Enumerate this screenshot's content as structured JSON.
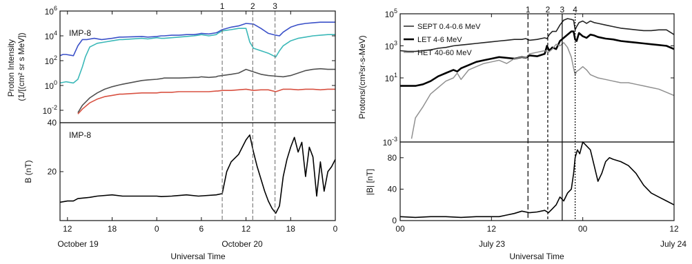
{
  "chart_data": [
    {
      "type": "line",
      "panel": "left",
      "top": {
        "label": "IMP-8",
        "ylabel_line1": "Proton Intensity",
        "ylabel_line2": "(1/[(cm² sr s MeV])",
        "yscale": "log",
        "ylim_exp": [
          -3,
          6
        ],
        "ytick_exps": [
          -2,
          0,
          2,
          4,
          6
        ],
        "series": [
          {
            "name": "",
            "color": "#3a50c8",
            "x": [
              -13,
              -12.6,
              -12.2,
              -11.2,
              -10.6,
              -10,
              -9.4,
              -8.4,
              -7.4,
              -6,
              -5,
              -4.6,
              -2,
              -1.2,
              0,
              0.6,
              1,
              2,
              3,
              4,
              5,
              5.6,
              6,
              7,
              8,
              8.2,
              8.8,
              10,
              11,
              12,
              13,
              14,
              15,
              16,
              16.5,
              17,
              18,
              19,
              20,
              21,
              22,
              23,
              24
            ],
            "y": [
              2.4,
              2.5,
              2.5,
              2.4,
              3.2,
              3.7,
              3.7,
              3.8,
              3.7,
              3.8,
              3.9,
              3.9,
              3.95,
              3.9,
              3.95,
              4.0,
              4.0,
              4.05,
              4.05,
              4.1,
              4.1,
              4.15,
              4.2,
              4.15,
              4.25,
              4.3,
              4.5,
              4.7,
              4.8,
              5.0,
              4.95,
              4.6,
              4.2,
              4.05,
              4.0,
              4.3,
              4.7,
              4.9,
              5.0,
              5.05,
              5.1,
              5.1,
              5.1
            ]
          },
          {
            "name": "",
            "color": "#3ab8b8",
            "x": [
              -13,
              -12.2,
              -11.2,
              -10.6,
              -10,
              -9.6,
              -9,
              -8,
              -7,
              -6,
              -5,
              -4.6,
              -2,
              -1.2,
              0,
              0.6,
              1,
              2,
              3,
              4,
              5,
              5.6,
              6,
              7,
              8,
              8.2,
              8.8,
              10,
              11,
              12,
              12.5,
              13,
              14,
              15,
              16,
              16.5,
              17,
              18,
              19,
              20,
              21,
              22,
              23,
              24
            ],
            "y": [
              0.2,
              0.3,
              0.2,
              0.5,
              1.5,
              2.3,
              3.1,
              3.4,
              3.5,
              3.6,
              3.7,
              3.7,
              3.8,
              3.75,
              3.85,
              3.8,
              3.8,
              3.85,
              3.9,
              3.95,
              4.0,
              4.05,
              4.1,
              4.0,
              4.1,
              4.2,
              4.4,
              4.5,
              4.6,
              4.6,
              3.5,
              3.0,
              2.8,
              2.6,
              2.3,
              2.8,
              3.2,
              3.6,
              3.8,
              3.9,
              4.0,
              4.05,
              4.1,
              4.1
            ]
          },
          {
            "name": "",
            "color": "#505050",
            "x": [
              -10.6,
              -10,
              -9,
              -8,
              -7,
              -6,
              -5,
              -4.6,
              -2,
              -1.2,
              0,
              0.6,
              1,
              2,
              3,
              4,
              5,
              5.6,
              6,
              7,
              8,
              8.2,
              8.8,
              10,
              11,
              12,
              13,
              14,
              15,
              16,
              17,
              18,
              19,
              20,
              21,
              22,
              23,
              24
            ],
            "y": [
              -2.2,
              -1.6,
              -1.0,
              -0.6,
              -0.3,
              -0.1,
              0.05,
              0.1,
              0.4,
              0.45,
              0.5,
              0.55,
              0.6,
              0.6,
              0.6,
              0.62,
              0.65,
              0.65,
              0.7,
              0.65,
              0.7,
              0.75,
              0.8,
              0.9,
              1.0,
              1.3,
              1.1,
              0.9,
              0.8,
              0.75,
              0.7,
              0.8,
              1.0,
              1.2,
              1.3,
              1.35,
              1.3,
              1.3
            ]
          },
          {
            "name": "",
            "color": "#d85040",
            "x": [
              -10.6,
              -10,
              -9,
              -8,
              -7,
              -6,
              -5,
              -4.6,
              -2,
              -1.2,
              0,
              0.6,
              1,
              2,
              3,
              4,
              5,
              5.6,
              6,
              7,
              8,
              8.2,
              8.8,
              10,
              11,
              12,
              13,
              14,
              15,
              16,
              17,
              18,
              19,
              20,
              21,
              22,
              23,
              24
            ],
            "y": [
              -2.3,
              -1.9,
              -1.4,
              -1.1,
              -0.9,
              -0.8,
              -0.7,
              -0.7,
              -0.6,
              -0.6,
              -0.6,
              -0.55,
              -0.55,
              -0.55,
              -0.5,
              -0.5,
              -0.5,
              -0.5,
              -0.5,
              -0.5,
              -0.45,
              -0.45,
              -0.4,
              -0.4,
              -0.35,
              -0.3,
              -0.4,
              -0.35,
              -0.35,
              -0.5,
              -0.3,
              -0.3,
              -0.35,
              -0.3,
              -0.3,
              -0.35,
              -0.3,
              -0.3
            ]
          }
        ]
      },
      "bottom": {
        "label": "IMP-8",
        "ylabel": "B (nT)",
        "ylim": [
          0,
          40
        ],
        "yticks": [
          20,
          40
        ],
        "x": [
          -13,
          -12,
          -11.2,
          -10.6,
          -9,
          -8,
          -6,
          -4.6,
          -2,
          -1.2,
          0,
          0.6,
          2,
          4,
          5.6,
          8,
          8.8,
          9.4,
          10,
          11,
          12,
          12.5,
          13,
          13.5,
          14,
          14.5,
          15,
          15.5,
          16,
          16.5,
          17,
          17.5,
          18,
          18.5,
          19,
          19.5,
          20,
          20.5,
          21,
          21.5,
          22,
          22.5,
          23,
          23.5,
          24
        ],
        "y": [
          7.5,
          8,
          8,
          9,
          9.5,
          10,
          10.5,
          10,
          10,
          10,
          10,
          9.8,
          10,
          10.5,
          10,
          10.5,
          11,
          20,
          24,
          27,
          33,
          35,
          28,
          22,
          17,
          12,
          8,
          5,
          3,
          6,
          18,
          25,
          30,
          34,
          28,
          32,
          18,
          30,
          26,
          10,
          24,
          12,
          20,
          22,
          25
        ]
      },
      "xtick_labels": [
        "12",
        "18",
        "0",
        "6",
        "12",
        "18",
        "0"
      ],
      "date_labels": [
        "October 19",
        "October 20"
      ],
      "xlabel": "Universal Time",
      "event_labels": [
        "1",
        "2",
        "3"
      ]
    },
    {
      "type": "line",
      "panel": "right",
      "top": {
        "ylabel": "Protons/(cm²sr-s-MeV)",
        "yscale": "log",
        "ylim_exp": [
          -3,
          5
        ],
        "ytick_exps": [
          -3,
          1,
          3,
          5
        ],
        "legend_position": "top-left",
        "series": [
          {
            "name": "SEPT 0.4-0.6 MeV",
            "color": "#222222",
            "x": [
              0,
              1,
              2,
              3,
              4,
              5,
              6,
              7,
              8,
              9,
              10,
              11,
              12,
              13,
              14,
              15,
              16,
              16.5,
              17,
              18,
              19,
              19.3,
              19.6,
              20,
              20.5,
              21,
              21.5,
              22,
              22.5,
              22.8,
              23,
              23.2,
              23.5,
              24,
              24.5,
              25,
              25.5,
              26,
              27,
              28,
              29,
              30,
              31,
              32,
              33,
              34,
              35,
              36
            ],
            "y": [
              2.7,
              2.65,
              2.65,
              2.7,
              2.75,
              2.85,
              2.9,
              3.0,
              3.05,
              3.1,
              3.15,
              3.2,
              3.25,
              3.3,
              3.35,
              3.4,
              3.4,
              3.45,
              3.35,
              3.4,
              3.5,
              3.45,
              3.7,
              3.9,
              3.9,
              4.3,
              4.6,
              4.7,
              4.65,
              4.6,
              4.0,
              4.2,
              4.45,
              4.55,
              4.4,
              4.55,
              4.45,
              4.4,
              4.3,
              4.2,
              4.1,
              4.05,
              4.0,
              3.95,
              3.95,
              4.0,
              4.0,
              3.7
            ]
          },
          {
            "name": "LET 4-6 MeV",
            "color": "#000000",
            "x": [
              0,
              1,
              2,
              3,
              4,
              5,
              6,
              7,
              7.5,
              8,
              9,
              10,
              11,
              12,
              13,
              14,
              15,
              16,
              16.5,
              17,
              18,
              19,
              19.3,
              19.6,
              20,
              20.5,
              21,
              21.5,
              22,
              22.5,
              22.8,
              23,
              23.2,
              23.5,
              24,
              24.5,
              25,
              25.5,
              26,
              27,
              28,
              29,
              30,
              31,
              32,
              33,
              34,
              35,
              36
            ],
            "y": [
              0.5,
              0.5,
              0.5,
              0.6,
              0.8,
              1.1,
              1.3,
              1.5,
              1.4,
              1.6,
              1.8,
              2.0,
              2.1,
              2.2,
              2.3,
              2.25,
              2.2,
              2.3,
              2.25,
              2.4,
              2.35,
              2.5,
              3.0,
              2.7,
              2.9,
              2.8,
              3.3,
              3.5,
              3.7,
              3.9,
              3.9,
              3.4,
              3.3,
              3.8,
              3.6,
              3.5,
              3.7,
              3.65,
              3.55,
              3.45,
              3.4,
              3.3,
              3.25,
              3.2,
              3.15,
              3.1,
              3.05,
              3.0,
              2.8
            ]
          },
          {
            "name": "HET 40-60 MeV",
            "color": "#909090",
            "x": [
              1.5,
              2,
              3,
              4,
              5,
              6,
              7,
              7.5,
              8,
              9,
              10,
              11,
              12,
              13,
              14,
              15,
              16,
              16.5,
              17,
              18,
              19,
              19.5,
              20,
              20.5,
              21,
              21.5,
              22,
              22.5,
              22.8,
              23,
              23.2,
              23.5,
              24,
              24.5,
              25,
              25.5,
              26,
              27,
              28,
              29,
              30,
              31,
              32,
              33,
              34,
              35,
              36
            ],
            "y": [
              -2.8,
              -1.5,
              -0.8,
              0,
              0.4,
              0.8,
              1.0,
              1.3,
              0.9,
              1.5,
              1.7,
              1.9,
              2.0,
              2.1,
              1.9,
              2.2,
              2.3,
              2.25,
              2.5,
              2.6,
              2.7,
              2.6,
              2.8,
              3.1,
              3.0,
              3.2,
              2.9,
              2.3,
              1.6,
              1.2,
              1.4,
              1.5,
              1.7,
              1.5,
              1.2,
              1.1,
              1.0,
              0.9,
              0.8,
              0.7,
              0.7,
              0.6,
              0.5,
              0.4,
              0.3,
              0.1,
              -0.1
            ]
          }
        ]
      },
      "bottom": {
        "ylabel": "|B| [nT]",
        "ylim": [
          0,
          100
        ],
        "yticks": [
          0,
          40,
          80
        ],
        "x": [
          0,
          2,
          4,
          6,
          8,
          10,
          12,
          13,
          14,
          15,
          16,
          17,
          18,
          19,
          19.5,
          20,
          20.5,
          21,
          21.5,
          22,
          22.5,
          22.8,
          23,
          23.3,
          23.6,
          24,
          24.5,
          25,
          25.5,
          26,
          26.5,
          27,
          27.5,
          28,
          29,
          30,
          31,
          32,
          33,
          34,
          35,
          36
        ],
        "y": [
          5,
          4,
          5,
          5,
          4,
          5,
          5,
          5,
          7,
          9,
          12,
          10,
          11,
          13,
          10,
          15,
          20,
          30,
          25,
          35,
          40,
          60,
          80,
          90,
          85,
          100,
          95,
          90,
          70,
          50,
          60,
          75,
          80,
          78,
          75,
          70,
          60,
          45,
          35,
          30,
          25,
          20
        ]
      },
      "xtick_labels": [
        "00",
        "12",
        "00",
        "12"
      ],
      "date_labels": [
        "July 23",
        "July 24"
      ],
      "xlabel": "Universal Time",
      "event_labels": [
        "1",
        "2",
        "3",
        "4"
      ]
    }
  ]
}
